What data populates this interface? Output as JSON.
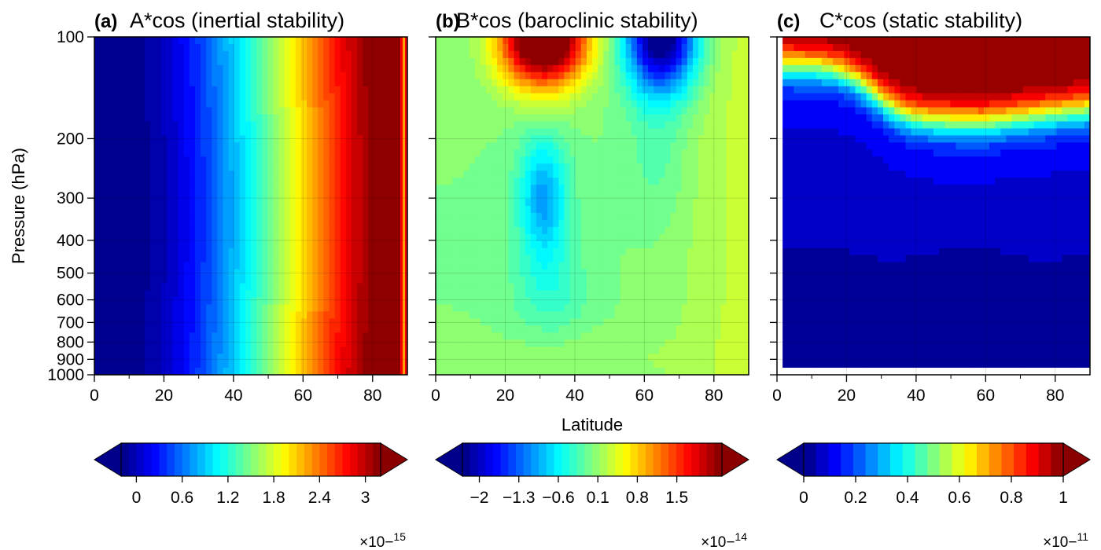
{
  "figure": {
    "ylabel": "Pressure (hPa)",
    "xlabel": "Latitude"
  },
  "chart_data": [
    {
      "type": "heatmap",
      "panel_label": "(a)",
      "title": "A*cos (inertial stability)",
      "xlim": [
        0,
        90
      ],
      "x_ticks": [
        0,
        20,
        40,
        60,
        80
      ],
      "ylim": [
        1000,
        100
      ],
      "y_scale": "log",
      "y_ticks": [
        100,
        200,
        300,
        400,
        500,
        600,
        700,
        800,
        900,
        1000
      ],
      "grid": true,
      "colormap": "jet",
      "field_description": "increases with latitude, nearly uniform in pressure",
      "colorbar": {
        "range": [
          -0.2,
          3.2
        ],
        "extend": "both",
        "ticks": [
          0,
          0.6,
          1.2,
          1.8,
          2.4,
          3
        ],
        "tick_labels": [
          "0",
          "0.6",
          "1.2",
          "1.8",
          "2.4",
          "3"
        ],
        "multiplier": "×10−15"
      }
    },
    {
      "type": "heatmap",
      "panel_label": "(b)",
      "title": "B*cos (baroclinic stability)",
      "xlim": [
        0,
        90
      ],
      "x_ticks": [
        0,
        20,
        40,
        60,
        80
      ],
      "ylim": [
        1000,
        100
      ],
      "y_scale": "log",
      "y_ticks": [
        100,
        200,
        300,
        400,
        500,
        600,
        700,
        800,
        900,
        1000
      ],
      "grid": true,
      "colormap": "jet",
      "field_description": "near zero; positive maximum near 30N at 100-150 hPa, negative minima near 65N at 100 hPa and 30N at 300 hPa",
      "colorbar": {
        "range": [
          -2.3,
          2.3
        ],
        "extend": "both",
        "ticks": [
          -2,
          -1.3,
          -0.6,
          0.1,
          0.8,
          1.5
        ],
        "tick_labels": [
          "−2",
          "−1.3",
          "−0.6",
          "0.1",
          "0.8",
          "1.5"
        ],
        "multiplier": "×10−14"
      }
    },
    {
      "type": "heatmap",
      "panel_label": "(c)",
      "title": "C*cos (static stability)",
      "xlim": [
        0,
        90
      ],
      "x_ticks": [
        0,
        20,
        40,
        60,
        80
      ],
      "ylim": [
        1000,
        100
      ],
      "y_scale": "log",
      "y_ticks": [
        100,
        200,
        300,
        400,
        500,
        600,
        700,
        800,
        900,
        1000
      ],
      "grid": true,
      "colormap": "jet",
      "field_description": "large in the stratosphere above ~150-180 hPa, small in the troposphere",
      "colorbar": {
        "range": [
          0,
          1
        ],
        "extend": "both",
        "ticks": [
          0,
          0.2,
          0.4,
          0.6,
          0.8,
          1
        ],
        "tick_labels": [
          "0",
          "0.2",
          "0.4",
          "0.6",
          "0.8",
          "1"
        ],
        "multiplier": "×10−11"
      }
    }
  ]
}
